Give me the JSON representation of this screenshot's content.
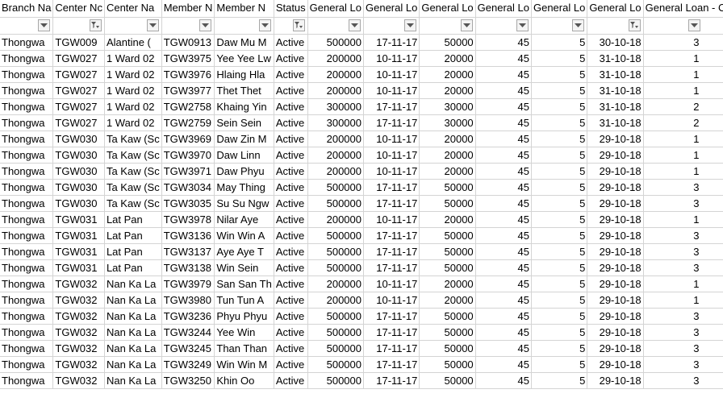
{
  "headers": [
    "Branch Na",
    "Center Nc",
    "Center Na",
    "Member N",
    "Member N",
    "Status",
    "General Lo",
    "General Lo",
    "General Lo",
    "General Lo",
    "General Lo",
    "General Lo",
    "General Loan - Cycle"
  ],
  "filters": [
    "dropdown",
    "filtered",
    "dropdown",
    "dropdown",
    "dropdown",
    "filtered",
    "dropdown",
    "dropdown",
    "dropdown",
    "dropdown",
    "dropdown",
    "filtered",
    "dropdown"
  ],
  "numeric_cols": [
    6,
    7,
    8,
    9,
    10,
    11,
    12
  ],
  "rows": [
    [
      "Thongwa",
      "TGW009",
      "Alantine (",
      "TGW0913",
      "Daw Mu M",
      "Active",
      "500000",
      "17-11-17",
      "50000",
      "45",
      "5",
      "30-10-18",
      "3"
    ],
    [
      "Thongwa",
      "TGW027",
      "1 Ward 02",
      "TGW3975",
      "Yee Yee Lw",
      "Active",
      "200000",
      "10-11-17",
      "20000",
      "45",
      "5",
      "31-10-18",
      "1"
    ],
    [
      "Thongwa",
      "TGW027",
      "1 Ward 02",
      "TGW3976",
      "Hlaing Hla",
      "Active",
      "200000",
      "10-11-17",
      "20000",
      "45",
      "5",
      "31-10-18",
      "1"
    ],
    [
      "Thongwa",
      "TGW027",
      "1 Ward 02",
      "TGW3977",
      "Thet Thet",
      "Active",
      "200000",
      "10-11-17",
      "20000",
      "45",
      "5",
      "31-10-18",
      "1"
    ],
    [
      "Thongwa",
      "TGW027",
      "1 Ward 02",
      "TGW2758",
      "Khaing Yin",
      "Active",
      "300000",
      "17-11-17",
      "30000",
      "45",
      "5",
      "31-10-18",
      "2"
    ],
    [
      "Thongwa",
      "TGW027",
      "1 Ward 02",
      "TGW2759",
      "Sein Sein",
      "Active",
      "300000",
      "17-11-17",
      "30000",
      "45",
      "5",
      "31-10-18",
      "2"
    ],
    [
      "Thongwa",
      "TGW030",
      "Ta Kaw (Sc",
      "TGW3969",
      "Daw Zin M",
      "Active",
      "200000",
      "10-11-17",
      "20000",
      "45",
      "5",
      "29-10-18",
      "1"
    ],
    [
      "Thongwa",
      "TGW030",
      "Ta Kaw (Sc",
      "TGW3970",
      "Daw Linn",
      "Active",
      "200000",
      "10-11-17",
      "20000",
      "45",
      "5",
      "29-10-18",
      "1"
    ],
    [
      "Thongwa",
      "TGW030",
      "Ta Kaw (Sc",
      "TGW3971",
      "Daw Phyu",
      "Active",
      "200000",
      "10-11-17",
      "20000",
      "45",
      "5",
      "29-10-18",
      "1"
    ],
    [
      "Thongwa",
      "TGW030",
      "Ta Kaw (Sc",
      "TGW3034",
      "May Thing",
      "Active",
      "500000",
      "17-11-17",
      "50000",
      "45",
      "5",
      "29-10-18",
      "3"
    ],
    [
      "Thongwa",
      "TGW030",
      "Ta Kaw (Sc",
      "TGW3035",
      "Su Su Ngw",
      "Active",
      "500000",
      "17-11-17",
      "50000",
      "45",
      "5",
      "29-10-18",
      "3"
    ],
    [
      "Thongwa",
      "TGW031",
      "Lat Pan",
      "TGW3978",
      "Nilar Aye",
      "Active",
      "200000",
      "10-11-17",
      "20000",
      "45",
      "5",
      "29-10-18",
      "1"
    ],
    [
      "Thongwa",
      "TGW031",
      "Lat Pan",
      "TGW3136",
      "Win Win A",
      "Active",
      "500000",
      "17-11-17",
      "50000",
      "45",
      "5",
      "29-10-18",
      "3"
    ],
    [
      "Thongwa",
      "TGW031",
      "Lat Pan",
      "TGW3137",
      "Aye Aye T",
      "Active",
      "500000",
      "17-11-17",
      "50000",
      "45",
      "5",
      "29-10-18",
      "3"
    ],
    [
      "Thongwa",
      "TGW031",
      "Lat Pan",
      "TGW3138",
      "Win Sein",
      "Active",
      "500000",
      "17-11-17",
      "50000",
      "45",
      "5",
      "29-10-18",
      "3"
    ],
    [
      "Thongwa",
      "TGW032",
      "Nan Ka La",
      "TGW3979",
      "San San Th",
      "Active",
      "200000",
      "10-11-17",
      "20000",
      "45",
      "5",
      "29-10-18",
      "1"
    ],
    [
      "Thongwa",
      "TGW032",
      "Nan Ka La",
      "TGW3980",
      "Tun Tun A",
      "Active",
      "200000",
      "10-11-17",
      "20000",
      "45",
      "5",
      "29-10-18",
      "1"
    ],
    [
      "Thongwa",
      "TGW032",
      "Nan Ka La",
      "TGW3236",
      "Phyu Phyu",
      "Active",
      "500000",
      "17-11-17",
      "50000",
      "45",
      "5",
      "29-10-18",
      "3"
    ],
    [
      "Thongwa",
      "TGW032",
      "Nan Ka La",
      "TGW3244",
      "Yee Win",
      "Active",
      "500000",
      "17-11-17",
      "50000",
      "45",
      "5",
      "29-10-18",
      "3"
    ],
    [
      "Thongwa",
      "TGW032",
      "Nan Ka La",
      "TGW3245",
      "Than Than",
      "Active",
      "500000",
      "17-11-17",
      "50000",
      "45",
      "5",
      "29-10-18",
      "3"
    ],
    [
      "Thongwa",
      "TGW032",
      "Nan Ka La",
      "TGW3249",
      "Win Win M",
      "Active",
      "500000",
      "17-11-17",
      "50000",
      "45",
      "5",
      "29-10-18",
      "3"
    ],
    [
      "Thongwa",
      "TGW032",
      "Nan Ka La",
      "TGW3250",
      "Khin Oo",
      "Active",
      "500000",
      "17-11-17",
      "50000",
      "45",
      "5",
      "29-10-18",
      "3"
    ]
  ]
}
